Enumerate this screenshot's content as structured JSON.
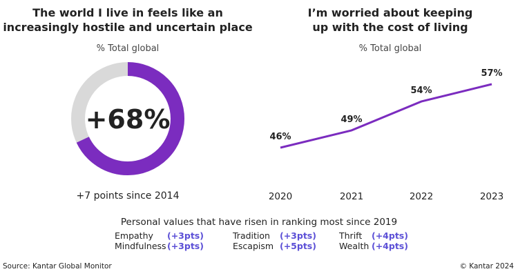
{
  "left": {
    "title_line1": "The world I live in feels like an",
    "title_line2": "increasingly hostile and uncertain place",
    "subtitle": "% Total global",
    "center_label": "+68%",
    "caption": "+7 points since 2014"
  },
  "right": {
    "title_line1": "I’m worried about keeping",
    "title_line2": "up with the cost of living",
    "subtitle": "% Total global"
  },
  "values_section": {
    "heading": "Personal values that have risen in ranking most since 2019",
    "items": [
      {
        "name": "Empathy",
        "change": "(+3pts)"
      },
      {
        "name": "Mindfulness",
        "change": "(+3pts)"
      },
      {
        "name": "Tradition",
        "change": "(+3pts)"
      },
      {
        "name": "Escapism",
        "change": "(+5pts)"
      },
      {
        "name": "Thrift",
        "change": "(+4pts)"
      },
      {
        "name": "Wealth",
        "change": "(+4pts)"
      }
    ]
  },
  "footer": {
    "source": "Source: Kantar Global Monitor",
    "copyright": "© Kantar 2024"
  },
  "colors": {
    "accent": "#7b2cbf",
    "track": "#d9d9d9",
    "change_text": "#5b4fd6"
  },
  "chart_data": [
    {
      "type": "pie",
      "subtype": "donut",
      "title": "The world I live in feels like an increasingly hostile and uncertain place",
      "values": [
        68,
        32
      ],
      "center_label": "+68%"
    },
    {
      "type": "line",
      "title": "I’m worried about keeping up with the cost of living",
      "ylabel": "% Total global",
      "categories": [
        "2020",
        "2021",
        "2022",
        "2023"
      ],
      "values": [
        46,
        49,
        54,
        57
      ],
      "data_labels": [
        "46%",
        "49%",
        "54%",
        "57%"
      ],
      "grid": false
    }
  ]
}
